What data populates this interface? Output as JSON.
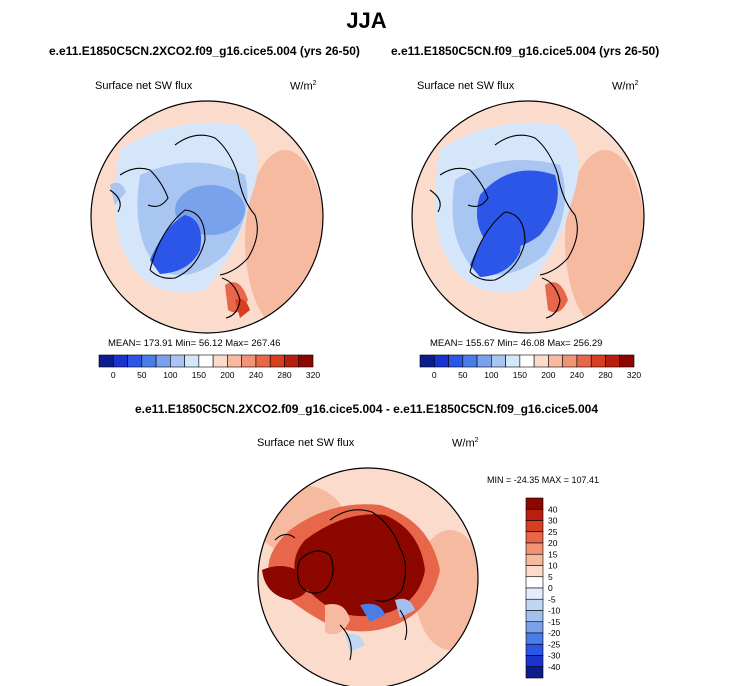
{
  "figure": {
    "title": "JJA",
    "panels": [
      {
        "case": "e.e11.E1850C5CN.2XCO2.f09_g16.cice5.004 (yrs 26-50)",
        "variable": "Surface net SW flux",
        "units": "W/m",
        "units_exp": "2",
        "stats": "MEAN= 173.91   Min=  56.12   Max= 267.46",
        "colorbar": {
          "ticks": [
            "0",
            "50",
            "100",
            "150",
            "200",
            "240",
            "280",
            "320"
          ],
          "colors": [
            "#0c1d8c",
            "#1a33cf",
            "#2b56e8",
            "#4a7de8",
            "#7aa2ec",
            "#a9c5f2",
            "#d5e5fa",
            "#ffffff",
            "#fbdccc",
            "#f6baa0",
            "#f19476",
            "#e8674a",
            "#d83e22",
            "#b8200d",
            "#8c0700"
          ]
        }
      },
      {
        "case": "e.e11.E1850C5CN.f09_g16.cice5.004 (yrs 26-50)",
        "variable": "Surface net SW flux",
        "units": "W/m",
        "units_exp": "2",
        "stats": "MEAN= 155.67   Min=  46.08   Max= 256.29",
        "colorbar": {
          "ticks": [
            "0",
            "50",
            "100",
            "150",
            "200",
            "240",
            "280",
            "320"
          ],
          "colors": [
            "#0c1d8c",
            "#1a33cf",
            "#2b56e8",
            "#4a7de8",
            "#7aa2ec",
            "#a9c5f2",
            "#d5e5fa",
            "#ffffff",
            "#fbdccc",
            "#f6baa0",
            "#f19476",
            "#e8674a",
            "#d83e22",
            "#b8200d",
            "#8c0700"
          ]
        }
      }
    ],
    "difference": {
      "title": "e.e11.E1850C5CN.2XCO2.f09_g16.cice5.004 - e.e11.E1850C5CN.f09_g16.cice5.004",
      "variable": "Surface net SW flux",
      "units": "W/m",
      "units_exp": "2",
      "minmax": "MIN = -24.35  MAX = 107.41",
      "colorbar": {
        "labels_top_to_bottom": [
          "40",
          "30",
          "25",
          "20",
          "15",
          "10",
          "5",
          "0",
          "-5",
          "-10",
          "-15",
          "-20",
          "-25",
          "-30",
          "-40"
        ],
        "colors_top_to_bottom": [
          "#8c0700",
          "#b8200d",
          "#d83e22",
          "#e8674a",
          "#f19476",
          "#f6baa0",
          "#fbdccc",
          "#ffffff",
          "#e3edfb",
          "#c0d6f5",
          "#a2bfee",
          "#7aa2ec",
          "#4a7de8",
          "#2b56e8",
          "#1a33cf",
          "#0c1d8c"
        ]
      }
    }
  },
  "chart_data": [
    {
      "type": "heatmap",
      "title": "e.e11.E1850C5CN.2XCO2.f09_g16.cice5.004 (yrs 26-50)",
      "variable": "Surface net SW flux",
      "units": "W/m2",
      "projection": "polar stereographic (Arctic)",
      "mean": 173.91,
      "min": 56.12,
      "max": 267.46,
      "colorbar_levels": [
        0,
        50,
        100,
        150,
        200,
        240,
        280,
        320
      ]
    },
    {
      "type": "heatmap",
      "title": "e.e11.E1850C5CN.f09_g16.cice5.004 (yrs 26-50)",
      "variable": "Surface net SW flux",
      "units": "W/m2",
      "projection": "polar stereographic (Arctic)",
      "mean": 155.67,
      "min": 46.08,
      "max": 256.29,
      "colorbar_levels": [
        0,
        50,
        100,
        150,
        200,
        240,
        280,
        320
      ]
    },
    {
      "type": "heatmap",
      "title": "e.e11.E1850C5CN.2XCO2.f09_g16.cice5.004 - e.e11.E1850C5CN.f09_g16.cice5.004",
      "variable": "Surface net SW flux",
      "units": "W/m2",
      "projection": "polar stereographic (Arctic)",
      "min": -24.35,
      "max": 107.41,
      "colorbar_levels": [
        -40,
        -30,
        -25,
        -20,
        -15,
        -10,
        -5,
        0,
        5,
        10,
        15,
        20,
        25,
        30,
        40
      ]
    }
  ]
}
